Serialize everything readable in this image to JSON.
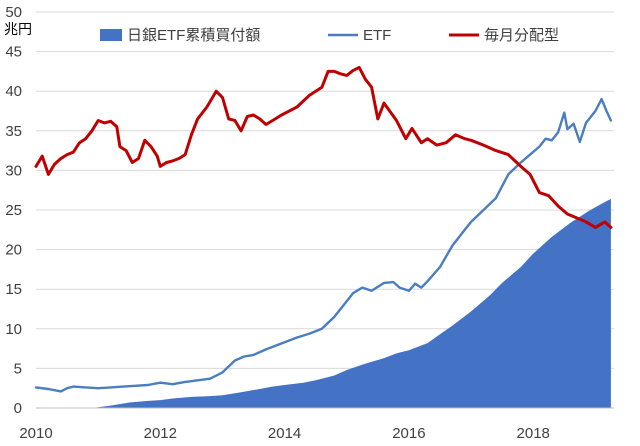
{
  "chart_data": {
    "type": "area",
    "title": "",
    "xlabel": "",
    "ylabel": "兆円",
    "xlim": [
      2010,
      2019.3
    ],
    "ylim": [
      0,
      50
    ],
    "x_ticks": [
      2010,
      2012,
      2014,
      2016,
      2018
    ],
    "y_ticks": [
      0,
      5,
      10,
      15,
      20,
      25,
      30,
      35,
      40,
      45,
      50
    ],
    "grid": "horizontal",
    "legend_position": "top",
    "series": [
      {
        "name": "日銀ETF累積買付額",
        "type": "area",
        "color": "#4472C4",
        "x": [
          2010.0,
          2010.5,
          2010.9,
          2011.0,
          2011.2,
          2011.5,
          2011.8,
          2012.0,
          2012.2,
          2012.5,
          2012.8,
          2013.0,
          2013.3,
          2013.6,
          2013.8,
          2014.0,
          2014.3,
          2014.5,
          2014.8,
          2015.0,
          2015.3,
          2015.6,
          2015.8,
          2016.0,
          2016.3,
          2016.5,
          2016.7,
          2017.0,
          2017.3,
          2017.5,
          2017.8,
          2018.0,
          2018.3,
          2018.6,
          2018.9,
          2019.1,
          2019.25
        ],
        "values": [
          0,
          0,
          0,
          0.1,
          0.3,
          0.7,
          0.9,
          1.0,
          1.2,
          1.4,
          1.5,
          1.6,
          2.0,
          2.4,
          2.7,
          2.9,
          3.2,
          3.5,
          4.1,
          4.8,
          5.6,
          6.3,
          6.9,
          7.3,
          8.2,
          9.3,
          10.4,
          12.2,
          14.2,
          15.8,
          17.8,
          19.5,
          21.6,
          23.4,
          24.9,
          25.8,
          26.4
        ]
      },
      {
        "name": "ETF",
        "type": "line",
        "color": "#4A7EC0",
        "x": [
          2010.0,
          2010.2,
          2010.4,
          2010.5,
          2010.6,
          2010.8,
          2011.0,
          2011.2,
          2011.4,
          2011.6,
          2011.8,
          2012.0,
          2012.2,
          2012.4,
          2012.6,
          2012.8,
          2013.0,
          2013.2,
          2013.35,
          2013.5,
          2013.7,
          2013.9,
          2014.0,
          2014.2,
          2014.4,
          2014.6,
          2014.8,
          2015.0,
          2015.1,
          2015.25,
          2015.4,
          2015.6,
          2015.75,
          2015.85,
          2016.0,
          2016.1,
          2016.2,
          2016.3,
          2016.5,
          2016.7,
          2016.9,
          2017.0,
          2017.2,
          2017.4,
          2017.6,
          2017.8,
          2017.95,
          2018.1,
          2018.2,
          2018.3,
          2018.4,
          2018.5,
          2018.55,
          2018.65,
          2018.75,
          2018.85,
          2019.0,
          2019.1,
          2019.18,
          2019.25
        ],
        "values": [
          2.6,
          2.4,
          2.1,
          2.5,
          2.7,
          2.6,
          2.5,
          2.6,
          2.7,
          2.8,
          2.9,
          3.2,
          3.0,
          3.3,
          3.5,
          3.7,
          4.5,
          6.0,
          6.5,
          6.7,
          7.4,
          8.0,
          8.3,
          8.9,
          9.4,
          10.0,
          11.5,
          13.5,
          14.5,
          15.2,
          14.8,
          15.8,
          15.9,
          15.2,
          14.8,
          15.7,
          15.2,
          16.0,
          17.8,
          20.5,
          22.5,
          23.5,
          25.0,
          26.5,
          29.5,
          31.0,
          32.0,
          33.0,
          34.0,
          33.8,
          34.8,
          37.3,
          35.2,
          35.9,
          33.6,
          36.0,
          37.5,
          39.0,
          37.5,
          36.3
        ]
      },
      {
        "name": "毎月分配型",
        "type": "line",
        "color": "#C00000",
        "x": [
          2010.0,
          2010.1,
          2010.2,
          2010.3,
          2010.4,
          2010.5,
          2010.6,
          2010.7,
          2010.8,
          2010.9,
          2011.0,
          2011.1,
          2011.2,
          2011.3,
          2011.35,
          2011.45,
          2011.55,
          2011.65,
          2011.75,
          2011.85,
          2011.95,
          2012.0,
          2012.1,
          2012.2,
          2012.3,
          2012.4,
          2012.5,
          2012.6,
          2012.75,
          2012.9,
          2013.0,
          2013.1,
          2013.2,
          2013.3,
          2013.4,
          2013.5,
          2013.6,
          2013.7,
          2013.85,
          2013.95,
          2014.0,
          2014.2,
          2014.4,
          2014.6,
          2014.7,
          2014.8,
          2014.9,
          2015.0,
          2015.1,
          2015.2,
          2015.3,
          2015.4,
          2015.5,
          2015.6,
          2015.8,
          2015.95,
          2016.05,
          2016.2,
          2016.3,
          2016.45,
          2016.6,
          2016.75,
          2016.9,
          2017.0,
          2017.2,
          2017.4,
          2017.6,
          2017.8,
          2017.95,
          2018.1,
          2018.25,
          2018.4,
          2018.55,
          2018.7,
          2018.85,
          2019.0,
          2019.15,
          2019.25
        ],
        "values": [
          30.5,
          31.8,
          29.5,
          30.8,
          31.5,
          32.0,
          32.3,
          33.5,
          34.0,
          35.0,
          36.3,
          36.0,
          36.2,
          35.5,
          33.0,
          32.5,
          31.0,
          31.5,
          33.8,
          33.0,
          31.8,
          30.5,
          31.0,
          31.2,
          31.5,
          32.0,
          34.5,
          36.5,
          38.0,
          40.0,
          39.2,
          36.5,
          36.3,
          35.0,
          36.8,
          37.0,
          36.5,
          35.8,
          36.5,
          37.0,
          37.2,
          38.0,
          39.5,
          40.5,
          42.5,
          42.5,
          42.2,
          42.0,
          42.6,
          43.0,
          41.5,
          40.5,
          36.5,
          38.5,
          36.3,
          34.0,
          35.3,
          33.5,
          34.0,
          33.2,
          33.5,
          34.5,
          34.0,
          33.8,
          33.2,
          32.5,
          32.0,
          30.5,
          29.5,
          27.2,
          26.8,
          25.5,
          24.5,
          24.0,
          23.5,
          22.8,
          23.5,
          22.8
        ]
      }
    ]
  }
}
